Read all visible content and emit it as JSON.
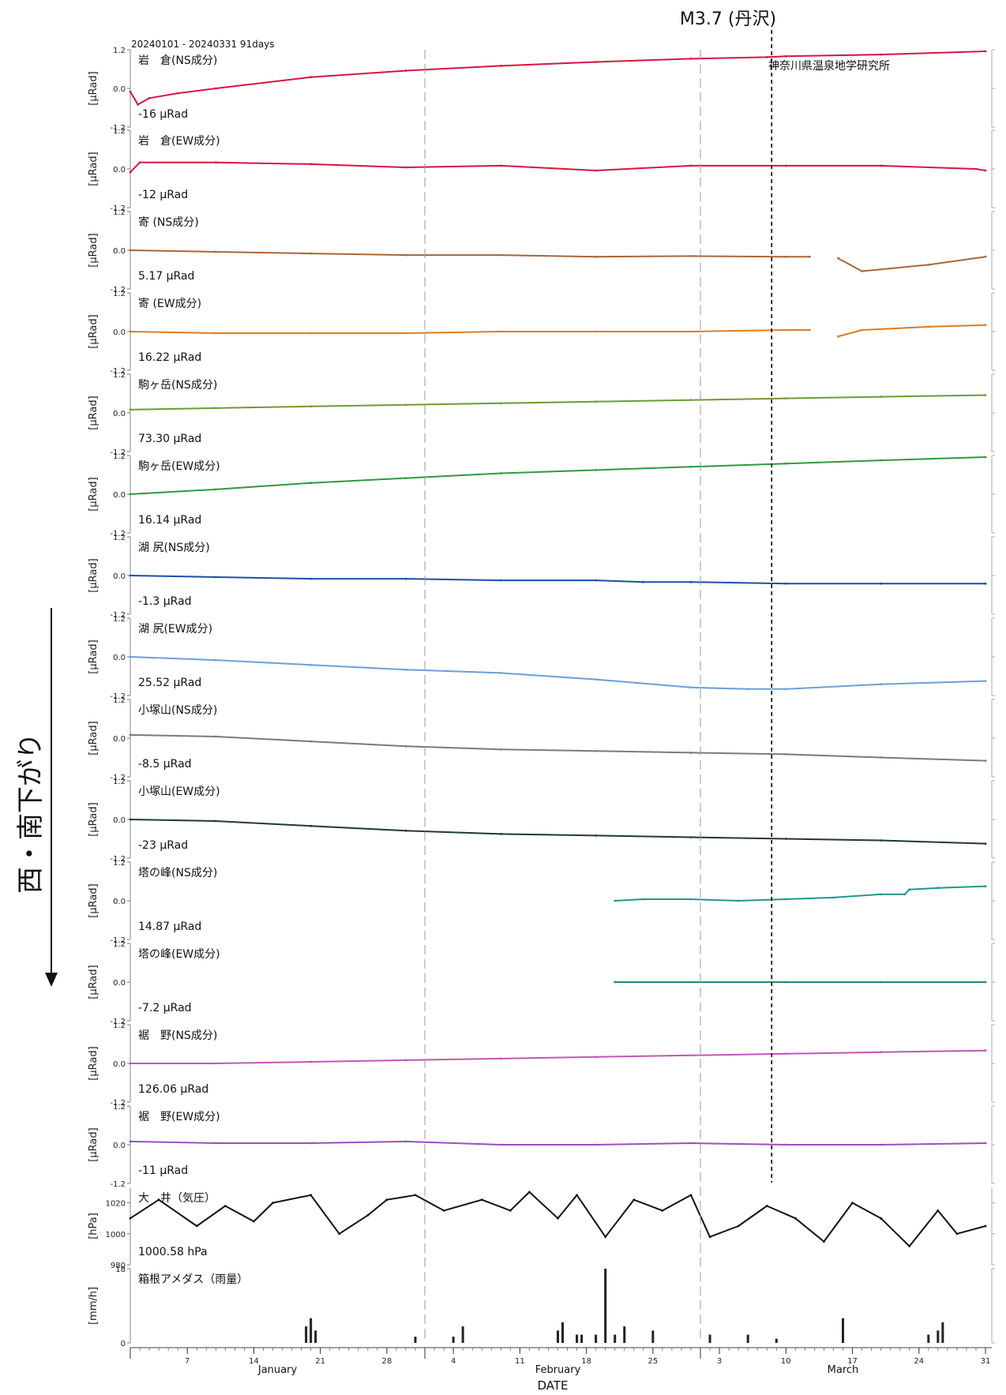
{
  "figure": {
    "period": "20240101 - 20240331 91days",
    "institute": "神奈川県温泉地学研究所",
    "event": "M3.7 (丹沢)",
    "side_label": "西・南下がり",
    "x_title": "DATE",
    "x_month_labels": [
      "January",
      "February",
      "March"
    ],
    "x_day_ticks": [
      "7",
      "14",
      "21",
      "28",
      "4",
      "11",
      "18",
      "25",
      "3",
      "10",
      "17",
      "24",
      "31"
    ]
  },
  "chart_data": {
    "type": "line",
    "x_unit": "day of 2024",
    "xlim": [
      1,
      91
    ],
    "event_day": 68.5,
    "weekly_tick_days": [
      7,
      14,
      21,
      28,
      35,
      42,
      49,
      56,
      63,
      70,
      77,
      84,
      91
    ],
    "month_boundaries": [
      32,
      61
    ],
    "panels": [
      {
        "name": "岩　倉(NS成分)",
        "value_text": "-16 μRad",
        "ylabel": "[μRad]",
        "yticks": [
          "1.2",
          "0.0",
          "-1.2"
        ],
        "ylim": [
          -1.2,
          1.2
        ],
        "color": "#d8143f",
        "x": [
          1,
          1.8,
          3,
          6,
          10,
          20,
          30,
          40,
          50,
          60,
          68,
          70,
          80,
          91
        ],
        "y": [
          -0.1,
          -0.5,
          -0.3,
          -0.15,
          0.0,
          0.35,
          0.55,
          0.7,
          0.82,
          0.92,
          0.97,
          1.0,
          1.05,
          1.15
        ]
      },
      {
        "name": "岩　倉(EW成分)",
        "value_text": "-12 μRad",
        "ylabel": "[μRad]",
        "yticks": [
          "1.2",
          "0.0",
          "-1.2"
        ],
        "ylim": [
          -1.2,
          1.2
        ],
        "color": "#d8143f",
        "x": [
          1,
          2,
          10,
          20,
          30,
          40,
          50,
          60,
          70,
          80,
          90,
          91
        ],
        "y": [
          -0.1,
          0.2,
          0.2,
          0.15,
          0.05,
          0.1,
          -0.05,
          0.1,
          0.1,
          0.1,
          0.0,
          -0.05
        ]
      },
      {
        "name": "寄 (NS成分)",
        "value_text": "5.17 μRad",
        "ylabel": "[μRad]",
        "yticks": [
          "1.2",
          "0.0",
          "-1.2"
        ],
        "ylim": [
          -1.2,
          1.2
        ],
        "color": "#a86638",
        "x": [
          1,
          10,
          20,
          30,
          40,
          50,
          60,
          70,
          72.5,
          null,
          75.5,
          78,
          85,
          91
        ],
        "y": [
          0.0,
          -0.05,
          -0.1,
          -0.15,
          -0.15,
          -0.2,
          -0.18,
          -0.2,
          -0.2,
          null,
          -0.25,
          -0.65,
          -0.45,
          -0.2
        ]
      },
      {
        "name": "寄 (EW成分)",
        "value_text": "16.22 μRad",
        "ylabel": "[μRad]",
        "yticks": [
          "1.2",
          "0.0",
          "-1.2"
        ],
        "ylim": [
          -1.2,
          1.2
        ],
        "color": "#e37a22",
        "x": [
          1,
          10,
          20,
          30,
          40,
          50,
          60,
          70,
          72.5,
          null,
          75.5,
          78,
          85,
          91
        ],
        "y": [
          0.0,
          -0.05,
          -0.05,
          -0.05,
          0.0,
          0.0,
          0.0,
          0.05,
          0.05,
          null,
          -0.15,
          0.05,
          0.15,
          0.2
        ]
      },
      {
        "name": "駒ヶ岳(NS成分)",
        "value_text": "73.30 μRad",
        "ylabel": "[μRad]",
        "yticks": [
          "1.2",
          "0.0",
          "-1.2"
        ],
        "ylim": [
          -1.2,
          1.2
        ],
        "color": "#6f9a35",
        "x": [
          1,
          10,
          20,
          30,
          40,
          50,
          60,
          70,
          80,
          91
        ],
        "y": [
          0.1,
          0.15,
          0.2,
          0.25,
          0.3,
          0.35,
          0.4,
          0.45,
          0.5,
          0.55
        ]
      },
      {
        "name": "駒ヶ岳(EW成分)",
        "value_text": "16.14 μRad",
        "ylabel": "[μRad]",
        "yticks": [
          "1.2",
          "0.0",
          "-1.2"
        ],
        "ylim": [
          -1.2,
          1.2
        ],
        "color": "#2f9a3f",
        "x": [
          1,
          10,
          20,
          30,
          40,
          50,
          60,
          70,
          80,
          91
        ],
        "y": [
          0.0,
          0.15,
          0.35,
          0.5,
          0.65,
          0.75,
          0.85,
          0.95,
          1.05,
          1.15
        ]
      },
      {
        "name": "湖 尻(NS成分)",
        "value_text": "-1.3 μRad",
        "ylabel": "[μRad]",
        "yticks": [
          "1.2",
          "0.0",
          "-1.2"
        ],
        "ylim": [
          -1.2,
          1.2
        ],
        "color": "#1a4fa8",
        "x": [
          1,
          10,
          20,
          30,
          40,
          50,
          55,
          60,
          70,
          80,
          91
        ],
        "y": [
          0.0,
          -0.05,
          -0.1,
          -0.1,
          -0.15,
          -0.15,
          -0.2,
          -0.2,
          -0.25,
          -0.25,
          -0.25
        ]
      },
      {
        "name": "湖 尻(EW成分)",
        "value_text": "25.52 μRad",
        "ylabel": "[μRad]",
        "yticks": [
          "1.2",
          "0.0",
          "-1.2"
        ],
        "ylim": [
          -1.2,
          1.2
        ],
        "color": "#6a9fd8",
        "x": [
          1,
          10,
          20,
          30,
          40,
          50,
          60,
          66,
          70,
          80,
          91
        ],
        "y": [
          0.0,
          -0.1,
          -0.25,
          -0.4,
          -0.5,
          -0.7,
          -0.95,
          -1.0,
          -1.0,
          -0.85,
          -0.75
        ]
      },
      {
        "name": "小塚山(NS成分)",
        "value_text": "-8.5 μRad",
        "ylabel": "[μRad]",
        "yticks": [
          "1.2",
          "0.0",
          "-1.2"
        ],
        "ylim": [
          -1.2,
          1.2
        ],
        "color": "#7a7a7a",
        "x": [
          1,
          10,
          20,
          30,
          40,
          50,
          60,
          70,
          80,
          91
        ],
        "y": [
          0.1,
          0.05,
          -0.1,
          -0.25,
          -0.35,
          -0.4,
          -0.45,
          -0.5,
          -0.6,
          -0.7
        ]
      },
      {
        "name": "小塚山(EW成分)",
        "value_text": "-23 μRad",
        "ylabel": "[μRad]",
        "yticks": [
          "1.2",
          "0.0",
          "-1.2"
        ],
        "ylim": [
          -1.2,
          1.2
        ],
        "color": "#1f3a2f",
        "x": [
          1,
          10,
          20,
          30,
          40,
          50,
          60,
          70,
          80,
          91
        ],
        "y": [
          0.0,
          -0.05,
          -0.2,
          -0.35,
          -0.45,
          -0.5,
          -0.55,
          -0.6,
          -0.65,
          -0.75
        ]
      },
      {
        "name": "塔の峰(NS成分)",
        "value_text": "14.87 μRad",
        "ylabel": "[μRad]",
        "yticks": [
          "1.2",
          "0.0",
          "-1.2"
        ],
        "ylim": [
          -1.2,
          1.2
        ],
        "color": "#22968c",
        "x": [
          52,
          55,
          60,
          65,
          70,
          75,
          80,
          82.5,
          83,
          86,
          91
        ],
        "y": [
          0.0,
          0.05,
          0.05,
          0.0,
          0.05,
          0.1,
          0.2,
          0.2,
          0.35,
          0.4,
          0.45
        ]
      },
      {
        "name": "塔の峰(EW成分)",
        "value_text": "-7.2 μRad",
        "ylabel": "[μRad]",
        "yticks": [
          "1.2",
          "0.0",
          "-1.2"
        ],
        "ylim": [
          -1.2,
          1.2
        ],
        "color": "#1c8a7e",
        "x": [
          52,
          60,
          70,
          80,
          91
        ],
        "y": [
          0.0,
          0.0,
          0.0,
          0.0,
          0.0
        ]
      },
      {
        "name": "裾　野(NS成分)",
        "value_text": "126.06 μRad",
        "ylabel": "[μRad]",
        "yticks": [
          "1.2",
          "0.0",
          "-1.2"
        ],
        "ylim": [
          -1.2,
          1.2
        ],
        "color": "#c156b8",
        "x": [
          1,
          10,
          20,
          30,
          40,
          50,
          60,
          70,
          80,
          91
        ],
        "y": [
          0.0,
          0.0,
          0.05,
          0.1,
          0.15,
          0.2,
          0.25,
          0.3,
          0.35,
          0.4
        ]
      },
      {
        "name": "裾　野(EW成分)",
        "value_text": "-11 μRad",
        "ylabel": "[μRad]",
        "yticks": [
          "1.2",
          "0.0",
          "-1.2"
        ],
        "ylim": [
          -1.2,
          1.2
        ],
        "color": "#a04cc0",
        "x": [
          1,
          10,
          20,
          30,
          40,
          50,
          60,
          70,
          80,
          91
        ],
        "y": [
          0.1,
          0.05,
          0.05,
          0.1,
          0.0,
          0.0,
          0.05,
          0.0,
          0.0,
          0.05
        ]
      },
      {
        "name": "大　井（気圧）",
        "value_text": "1000.58 hPa",
        "ylabel": "[hPa]",
        "yticks": [
          "1020",
          "1000",
          "980"
        ],
        "ylim": [
          980,
          1030
        ],
        "color": "#111111",
        "x": [
          1,
          4,
          8,
          11,
          14,
          16,
          20,
          23,
          26,
          28,
          31,
          34,
          38,
          41,
          43,
          46,
          48,
          51,
          54,
          57,
          60,
          62,
          65,
          68,
          71,
          74,
          77,
          80,
          83,
          86,
          88,
          91
        ],
        "y": [
          1010,
          1022,
          1005,
          1018,
          1008,
          1020,
          1025,
          1000,
          1012,
          1022,
          1025,
          1015,
          1022,
          1015,
          1027,
          1010,
          1025,
          998,
          1022,
          1015,
          1025,
          998,
          1005,
          1018,
          1010,
          995,
          1020,
          1010,
          992,
          1015,
          1000,
          1005
        ]
      },
      {
        "name": "箱根アメダス（雨量）",
        "value_text": "",
        "ylabel": "[mm/h]",
        "yticks": [
          "18",
          "0"
        ],
        "ylim": [
          0,
          18
        ],
        "color": "#222222",
        "type": "bar",
        "x": [
          19.5,
          20,
          20.5,
          31,
          35,
          36,
          46,
          46.5,
          48,
          48.5,
          50,
          51,
          52,
          53,
          56,
          62,
          66,
          69,
          76,
          85,
          86,
          86.5
        ],
        "y": [
          4,
          6,
          3,
          1.5,
          1.5,
          4,
          3,
          5,
          2,
          2,
          2,
          18,
          2,
          4,
          3,
          2,
          2,
          1,
          6,
          2,
          3,
          5
        ]
      }
    ]
  }
}
